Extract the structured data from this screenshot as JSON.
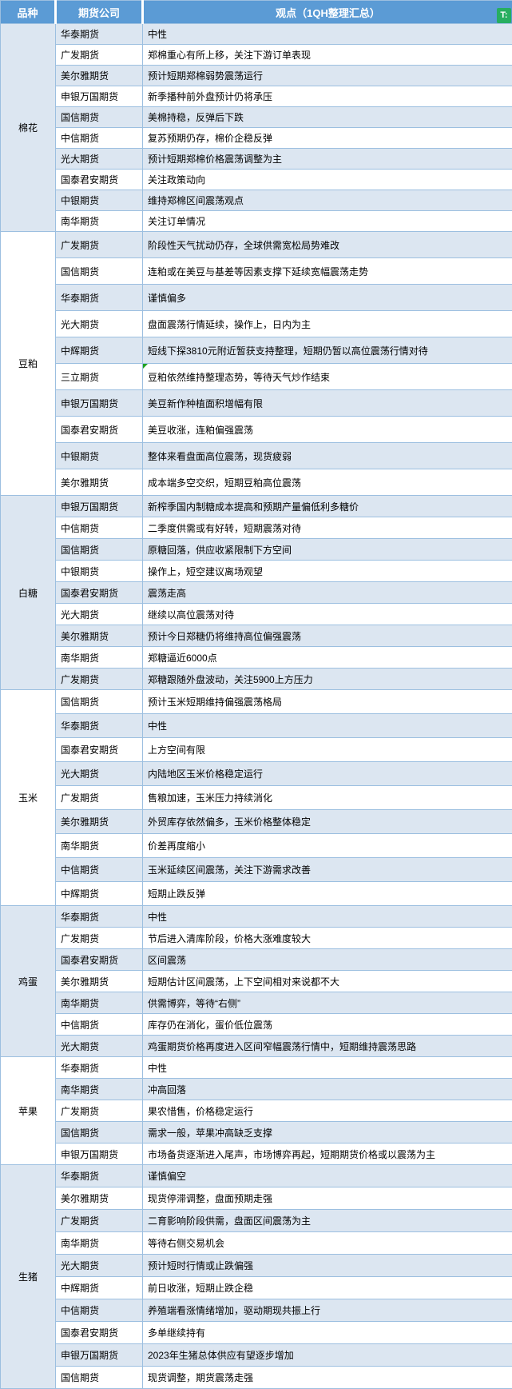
{
  "header": {
    "columns": [
      "品种",
      "期货公司",
      "观点（1QH整理汇总）"
    ],
    "logo_icon": "T:"
  },
  "colors": {
    "header_bg": "#5b9bd5",
    "header_text": "#ffffff",
    "row_alt_bg": "#dce6f1",
    "row_bg": "#ffffff",
    "border": "#9cbfe0",
    "logo_green": "#27ae60",
    "comment_marker_green": "#1fa11f"
  },
  "table": {
    "sections": [
      {
        "variety": "棉花",
        "rows": [
          {
            "company": "华泰期货",
            "view": "中性"
          },
          {
            "company": "广发期货",
            "view": "郑棉重心有所上移，关注下游订单表现"
          },
          {
            "company": "美尔雅期货",
            "view": "预计短期郑棉弱势震荡运行"
          },
          {
            "company": "申银万国期货",
            "view": "新季播种前外盘预计仍将承压"
          },
          {
            "company": "国信期货",
            "view": "美棉持稳，反弹后下跌"
          },
          {
            "company": "中信期货",
            "view": "复苏预期仍存，棉价企稳反弹"
          },
          {
            "company": "光大期货",
            "view": "预计短期郑棉价格震荡调整为主"
          },
          {
            "company": "国泰君安期货",
            "view": "关注政策动向"
          },
          {
            "company": "中银期货",
            "view": "维持郑棉区间震荡观点"
          },
          {
            "company": "南华期货",
            "view": "关注订单情况"
          }
        ]
      },
      {
        "variety": "豆粕",
        "rows": [
          {
            "company": "广发期货",
            "view": "阶段性天气扰动仍存，全球供需宽松局势难改"
          },
          {
            "company": "国信期货",
            "view": "连粕或在美豆与基差等因素支撑下延续宽幅震荡走势"
          },
          {
            "company": "华泰期货",
            "view": "谨慎偏多"
          },
          {
            "company": "光大期货",
            "view": "盘面震荡行情延续，操作上，日内为主"
          },
          {
            "company": "中辉期货",
            "view": "短线下探3810元附近暂获支持整理，短期仍暂以高位震荡行情对待"
          },
          {
            "company": "三立期货",
            "view": "豆粕依然维持整理态势，等待天气炒作结束",
            "marker": true
          },
          {
            "company": "申银万国期货",
            "view": "美豆新作种植面积增幅有限"
          },
          {
            "company": "国泰君安期货",
            "view": "美豆收涨，连粕偏强震荡"
          },
          {
            "company": "中银期货",
            "view": "整体来看盘面高位震荡，现货疲弱"
          },
          {
            "company": "美尔雅期货",
            "view": "成本端多空交织，短期豆粕高位震荡"
          }
        ]
      },
      {
        "variety": "白糖",
        "rows": [
          {
            "company": "申银万国期货",
            "view": "新榨季国内制糖成本提高和预期产量偏低利多糖价"
          },
          {
            "company": "中信期货",
            "view": "二季度供需或有好转，短期震荡对待"
          },
          {
            "company": "国信期货",
            "view": "原糖回落，供应收紧限制下方空间"
          },
          {
            "company": "中银期货",
            "view": "操作上，短空建议离场观望"
          },
          {
            "company": "国泰君安期货",
            "view": "震荡走高"
          },
          {
            "company": "光大期货",
            "view": "继续以高位震荡对待"
          },
          {
            "company": "美尔雅期货",
            "view": "预计今日郑糖仍将维持高位偏强震荡"
          },
          {
            "company": "南华期货",
            "view": "郑糖逼近6000点"
          },
          {
            "company": "广发期货",
            "view": "郑糖跟随外盘波动，关注5900上方压力"
          }
        ]
      },
      {
        "variety": "玉米",
        "rows": [
          {
            "company": "国信期货",
            "view": "预计玉米短期维持偏强震荡格局"
          },
          {
            "company": "华泰期货",
            "view": "中性"
          },
          {
            "company": "国泰君安期货",
            "view": "上方空间有限"
          },
          {
            "company": "光大期货",
            "view": "内陆地区玉米价格稳定运行"
          },
          {
            "company": "广发期货",
            "view": "售粮加速，玉米压力持续消化"
          },
          {
            "company": "美尔雅期货",
            "view": "外贸库存依然偏多，玉米价格整体稳定"
          },
          {
            "company": "南华期货",
            "view": "价差再度缩小"
          },
          {
            "company": "中信期货",
            "view": "玉米延续区间震荡，关注下游需求改善"
          },
          {
            "company": "中辉期货",
            "view": "短期止跌反弹"
          }
        ]
      },
      {
        "variety": "鸡蛋",
        "rows": [
          {
            "company": "华泰期货",
            "view": "中性"
          },
          {
            "company": "广发期货",
            "view": "节后进入清库阶段，价格大涨难度较大"
          },
          {
            "company": "国泰君安期货",
            "view": "区间震荡"
          },
          {
            "company": "美尔雅期货",
            "view": "短期估计区间震荡，上下空间相对来说都不大"
          },
          {
            "company": "南华期货",
            "view": "供需博弈，等待“右侧”"
          },
          {
            "company": "中信期货",
            "view": "库存仍在消化，蛋价低位震荡"
          },
          {
            "company": "光大期货",
            "view": "鸡蛋期货价格再度进入区间窄幅震荡行情中，短期维持震荡思路"
          }
        ]
      },
      {
        "variety": "苹果",
        "rows": [
          {
            "company": "华泰期货",
            "view": "中性"
          },
          {
            "company": "南华期货",
            "view": "冲高回落"
          },
          {
            "company": "广发期货",
            "view": "果农惜售，价格稳定运行"
          },
          {
            "company": "国信期货",
            "view": "需求一般，苹果冲高缺乏支撑"
          },
          {
            "company": "申银万国期货",
            "view": "市场备货逐渐进入尾声，市场博弈再起，短期期货价格或以震荡为主"
          }
        ]
      },
      {
        "variety": "生猪",
        "rows": [
          {
            "company": "华泰期货",
            "view": "谨慎偏空"
          },
          {
            "company": "美尔雅期货",
            "view": "现货停滞调整，盘面预期走强"
          },
          {
            "company": "广发期货",
            "view": "二育影响阶段供需，盘面区间震荡为主"
          },
          {
            "company": "南华期货",
            "view": "等待右侧交易机会"
          },
          {
            "company": "光大期货",
            "view": "预计短时行情或止跌偏强"
          },
          {
            "company": "中辉期货",
            "view": "前日收涨，短期止跌企稳"
          },
          {
            "company": "中信期货",
            "view": "养殖端看涨情绪增加，驱动期现共振上行"
          },
          {
            "company": "国泰君安期货",
            "view": "多单继续持有"
          },
          {
            "company": "申银万国期货",
            "view": "2023年生猪总体供应有望逐步增加"
          },
          {
            "company": "国信期货",
            "view": "现货调整，期货震荡走强"
          }
        ]
      }
    ]
  }
}
